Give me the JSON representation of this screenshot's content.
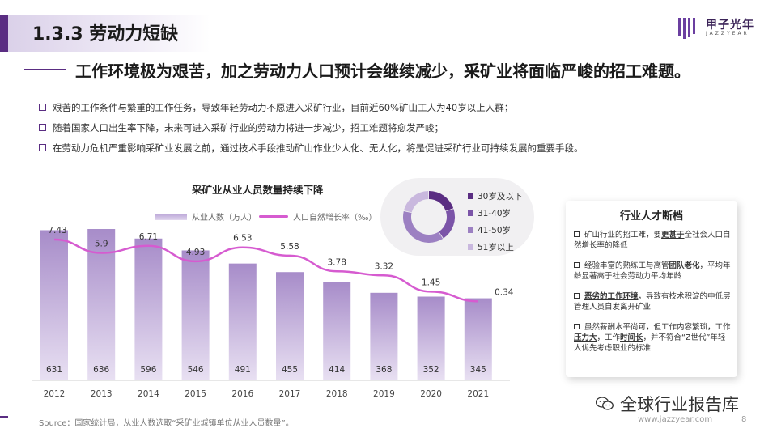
{
  "section_title": "1.3.3 劳动力短缺",
  "logo": {
    "name": "甲子光年",
    "sub": "JAZZYEAR"
  },
  "headline": "工作环境极为艰苦，加之劳动力人口预计会继续减少，采矿业将面临严峻的招工难题。",
  "bullets": [
    "艰苦的工作条件与繁重的工作任务，导致年轻劳动力不愿进入采矿行业，目前近60%矿山工人为40岁以上人群；",
    "随着国家人口出生率下降，未来可进入采矿行业的劳动力将进一步减少，招工难题将愈发严峻；",
    "在劳动力危机严重影响采矿业发展之前，通过技术手段推动矿山作业少人化、无人化，将是促进采矿行业可持续发展的重要手段。"
  ],
  "chart_data": [
    {
      "type": "bar",
      "title": "采矿业从业人员数量持续下降",
      "categories": [
        "2012",
        "2013",
        "2014",
        "2015",
        "2016",
        "2017",
        "2018",
        "2019",
        "2020",
        "2021"
      ],
      "series": [
        {
          "name": "从业人数（万人）",
          "type": "bar",
          "values": [
            631,
            636,
            596,
            546,
            491,
            455,
            414,
            368,
            352,
            345
          ]
        },
        {
          "name": "人口自然增长率（‰）",
          "type": "line",
          "values": [
            7.43,
            5.9,
            6.71,
            4.93,
            6.53,
            5.58,
            3.78,
            3.32,
            1.45,
            0.34
          ]
        }
      ],
      "colors": {
        "bar": "#b9a4d6",
        "line": "#d65bd0"
      }
    },
    {
      "type": "pie",
      "style": "donut",
      "labels": [
        "30岁及以下",
        "31-40岁",
        "41-50岁",
        "51岁以上"
      ],
      "values": [
        20,
        21,
        38,
        21
      ],
      "colors": [
        "#5a2d82",
        "#7b54a8",
        "#9c80c2",
        "#c9b8de"
      ]
    }
  ],
  "talent_card": {
    "title": "行业人才断档",
    "items": [
      [
        "矿山行业的招工难，要",
        "更甚于",
        "全社会人口自然增长率的降低"
      ],
      [
        "经验丰富的熟练工与高管",
        "团队老化",
        "，平均年龄显著高于社会劳动力平均年龄"
      ],
      [
        "",
        "恶劣的工作环境",
        "，导致有技术积淀的中低层管理人员自发离开矿业"
      ],
      [
        "虽然薪酬水平尚可，但工作内容繁琐，工作",
        "压力大",
        "，工作",
        "时间长",
        "，并不符合“Z世代”年轻人优先考虑职业的标准"
      ]
    ]
  },
  "source": "Source：国家统计局，从业人数选取“采矿业城镇单位从业人员数量”。",
  "wechat": "全球行业报告库",
  "site": "www.jazzyear.com",
  "page": "8"
}
